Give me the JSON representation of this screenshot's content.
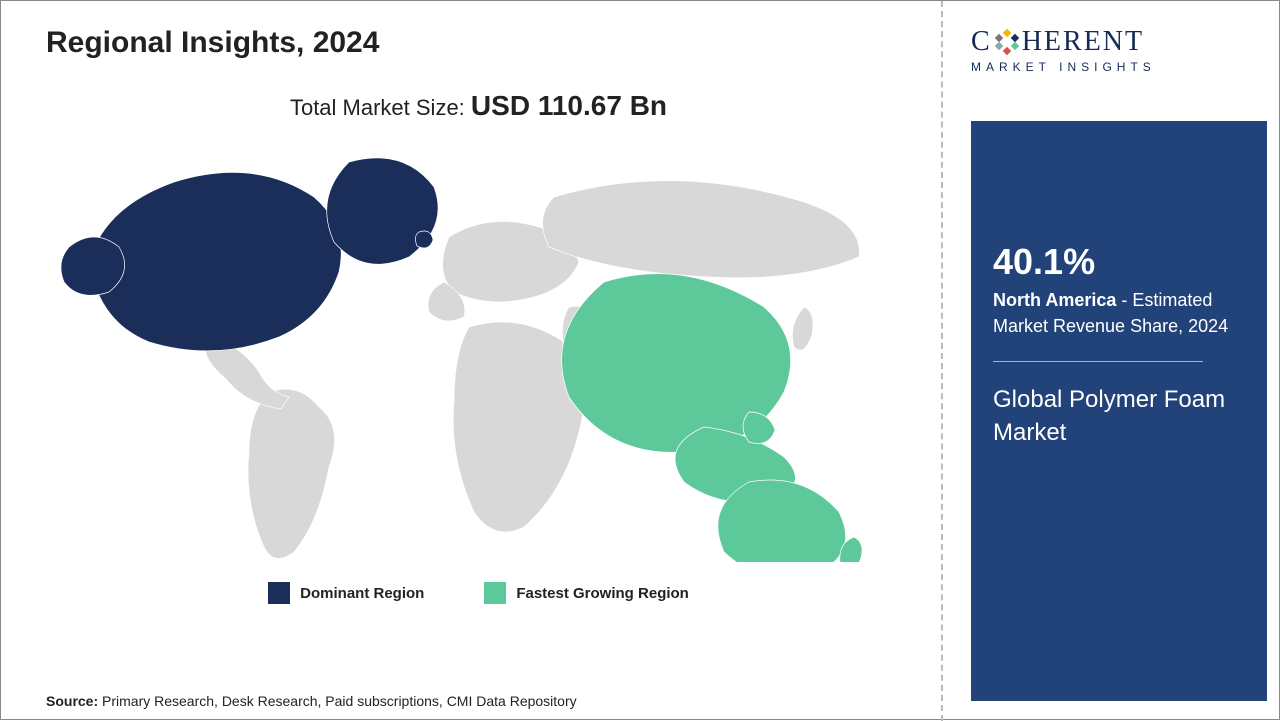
{
  "title": "Regional Insights, 2024",
  "market_size": {
    "label": "Total Market Size:",
    "value": "USD 110.67 Bn",
    "label_fontsize": 22,
    "value_fontsize": 28
  },
  "map": {
    "type": "choropleth-world",
    "default_fill": "#d8d8d8",
    "stroke": "#ffffff",
    "stroke_width": 0.7,
    "regions": {
      "dominant": {
        "color": "#1b2e5a",
        "areas": [
          "North America",
          "Greenland"
        ]
      },
      "fastest_growing": {
        "color": "#5dc99a",
        "areas": [
          "Asia Pacific"
        ]
      }
    }
  },
  "legend": {
    "items": [
      {
        "swatch": "#1b2e5a",
        "label": "Dominant Region"
      },
      {
        "swatch": "#5dc99a",
        "label": "Fastest Growing Region"
      }
    ]
  },
  "source": {
    "label": "Source:",
    "text": "Primary Research, Desk Research, Paid subscriptions, CMI Data Repository"
  },
  "logo": {
    "main": "COHERENT",
    "sub": "MARKET INSIGHTS",
    "dot_colors": [
      "#f2b705",
      "#1b2e5a",
      "#5dc99a",
      "#d94f4f",
      "#8aa",
      "#777"
    ],
    "text_color": "#152a57"
  },
  "side_card": {
    "bg_color": "#22427a",
    "pct": "40.1%",
    "region": "North America",
    "desc_tail": " - Estimated Market Revenue Share, 2024",
    "market_name": "Global Polymer Foam Market",
    "pct_fontsize": 36,
    "desc_fontsize": 18,
    "name_fontsize": 24
  },
  "colors": {
    "page_bg": "#ffffff",
    "divider": "#bbbbbb",
    "text": "#222222"
  }
}
